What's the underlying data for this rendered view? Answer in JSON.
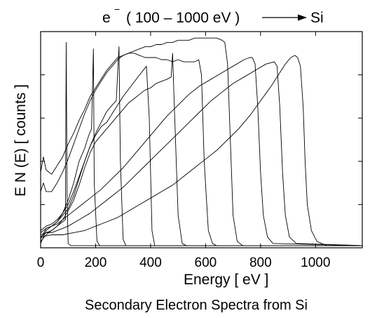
{
  "chart_data": {
    "type": "line",
    "title_prefix": "e",
    "title_superscript": "−",
    "title_main": "( 100 – 1000 eV )",
    "title_suffix": "Si",
    "xlabel": "Energy  [ eV ]",
    "ylabel": "E N (E)  [ counts ]",
    "caption": "Secondary Electron Spectra from Si",
    "xlim": [
      0,
      1170
    ],
    "x_ticks": [
      0,
      200,
      400,
      600,
      800,
      1000
    ],
    "x_tick_labels": [
      "0",
      "200",
      "400",
      "600",
      "800",
      "1000"
    ],
    "y_ticks_relative": [
      0.2,
      0.4,
      0.6,
      0.8
    ],
    "grid": false,
    "legend": "none",
    "line_color": "#000000",
    "series": [
      {
        "primary_energy_eV": 100,
        "points": [
          [
            0,
            0.05
          ],
          [
            20,
            0.07
          ],
          [
            40,
            0.08
          ],
          [
            60,
            0.1
          ],
          [
            80,
            0.12
          ],
          [
            90,
            0.13
          ],
          [
            93,
            0.95
          ],
          [
            96,
            0.25
          ],
          [
            100,
            0.02
          ],
          [
            110,
            0.01
          ],
          [
            1170,
            0.01
          ]
        ]
      },
      {
        "primary_energy_eV": 200,
        "points": [
          [
            0,
            0.02
          ],
          [
            20,
            0.08
          ],
          [
            40,
            0.1
          ],
          [
            60,
            0.12
          ],
          [
            80,
            0.16
          ],
          [
            100,
            0.22
          ],
          [
            120,
            0.3
          ],
          [
            140,
            0.4
          ],
          [
            160,
            0.46
          ],
          [
            175,
            0.52
          ],
          [
            185,
            0.55
          ],
          [
            192,
            0.92
          ],
          [
            195,
            0.3
          ],
          [
            205,
            0.03
          ],
          [
            215,
            0.01
          ],
          [
            1170,
            0.01
          ]
        ]
      },
      {
        "primary_energy_eV": 300,
        "points": [
          [
            0,
            0.08
          ],
          [
            20,
            0.1
          ],
          [
            40,
            0.11
          ],
          [
            60,
            0.13
          ],
          [
            80,
            0.16
          ],
          [
            100,
            0.2
          ],
          [
            120,
            0.26
          ],
          [
            140,
            0.33
          ],
          [
            160,
            0.4
          ],
          [
            180,
            0.47
          ],
          [
            200,
            0.53
          ],
          [
            220,
            0.58
          ],
          [
            240,
            0.63
          ],
          [
            260,
            0.66
          ],
          [
            275,
            0.68
          ],
          [
            285,
            0.93
          ],
          [
            290,
            0.4
          ],
          [
            300,
            0.04
          ],
          [
            310,
            0.01
          ],
          [
            1170,
            0.01
          ]
        ]
      },
      {
        "primary_energy_eV": 400,
        "points": [
          [
            0,
            0.04
          ],
          [
            20,
            0.09
          ],
          [
            40,
            0.1
          ],
          [
            60,
            0.12
          ],
          [
            80,
            0.15
          ],
          [
            100,
            0.18
          ],
          [
            120,
            0.24
          ],
          [
            140,
            0.32
          ],
          [
            160,
            0.4
          ],
          [
            180,
            0.47
          ],
          [
            200,
            0.52
          ],
          [
            220,
            0.56
          ],
          [
            240,
            0.58
          ],
          [
            260,
            0.62
          ],
          [
            280,
            0.66
          ],
          [
            300,
            0.7
          ],
          [
            330,
            0.75
          ],
          [
            360,
            0.8
          ],
          [
            385,
            0.84
          ],
          [
            395,
            0.6
          ],
          [
            405,
            0.08
          ],
          [
            415,
            0.01
          ],
          [
            1170,
            0.01
          ]
        ]
      },
      {
        "primary_energy_eV": 500,
        "points": [
          [
            0,
            0.03
          ],
          [
            20,
            0.06
          ],
          [
            40,
            0.08
          ],
          [
            60,
            0.1
          ],
          [
            80,
            0.13
          ],
          [
            100,
            0.17
          ],
          [
            120,
            0.22
          ],
          [
            140,
            0.29
          ],
          [
            160,
            0.37
          ],
          [
            180,
            0.44
          ],
          [
            200,
            0.49
          ],
          [
            220,
            0.52
          ],
          [
            240,
            0.55
          ],
          [
            260,
            0.58
          ],
          [
            280,
            0.61
          ],
          [
            300,
            0.64
          ],
          [
            320,
            0.67
          ],
          [
            340,
            0.69
          ],
          [
            360,
            0.71
          ],
          [
            380,
            0.73
          ],
          [
            400,
            0.74
          ],
          [
            420,
            0.76
          ],
          [
            440,
            0.77
          ],
          [
            460,
            0.78
          ],
          [
            475,
            0.79
          ],
          [
            480,
            0.9
          ],
          [
            485,
            0.7
          ],
          [
            500,
            0.15
          ],
          [
            515,
            0.02
          ],
          [
            530,
            0.01
          ],
          [
            1170,
            0.01
          ]
        ]
      },
      {
        "primary_energy_eV": 600,
        "points": [
          [
            0,
            0.35
          ],
          [
            10,
            0.42
          ],
          [
            20,
            0.36
          ],
          [
            40,
            0.34
          ],
          [
            60,
            0.38
          ],
          [
            80,
            0.42
          ],
          [
            100,
            0.48
          ],
          [
            120,
            0.53
          ],
          [
            140,
            0.59
          ],
          [
            160,
            0.64
          ],
          [
            180,
            0.7
          ],
          [
            200,
            0.74
          ],
          [
            220,
            0.78
          ],
          [
            240,
            0.82
          ],
          [
            260,
            0.85
          ],
          [
            280,
            0.88
          ],
          [
            300,
            0.89
          ],
          [
            320,
            0.9
          ],
          [
            340,
            0.9
          ],
          [
            360,
            0.89
          ],
          [
            380,
            0.88
          ],
          [
            400,
            0.88
          ],
          [
            420,
            0.88
          ],
          [
            440,
            0.87
          ],
          [
            460,
            0.87
          ],
          [
            480,
            0.86
          ],
          [
            500,
            0.87
          ],
          [
            520,
            0.86
          ],
          [
            540,
            0.86
          ],
          [
            560,
            0.86
          ],
          [
            575,
            0.87
          ],
          [
            585,
            0.8
          ],
          [
            595,
            0.4
          ],
          [
            610,
            0.08
          ],
          [
            625,
            0.02
          ],
          [
            640,
            0.01
          ],
          [
            1170,
            0.01
          ]
        ]
      },
      {
        "primary_energy_eV": 700,
        "points": [
          [
            0,
            0.26
          ],
          [
            10,
            0.3
          ],
          [
            20,
            0.26
          ],
          [
            40,
            0.26
          ],
          [
            60,
            0.3
          ],
          [
            80,
            0.35
          ],
          [
            100,
            0.41
          ],
          [
            120,
            0.48
          ],
          [
            140,
            0.55
          ],
          [
            160,
            0.62
          ],
          [
            180,
            0.68
          ],
          [
            200,
            0.73
          ],
          [
            220,
            0.77
          ],
          [
            240,
            0.81
          ],
          [
            260,
            0.84
          ],
          [
            280,
            0.87
          ],
          [
            300,
            0.89
          ],
          [
            320,
            0.9
          ],
          [
            340,
            0.91
          ],
          [
            360,
            0.92
          ],
          [
            380,
            0.93
          ],
          [
            400,
            0.93
          ],
          [
            420,
            0.94
          ],
          [
            440,
            0.94
          ],
          [
            460,
            0.95
          ],
          [
            480,
            0.95
          ],
          [
            500,
            0.96
          ],
          [
            520,
            0.96
          ],
          [
            540,
            0.96
          ],
          [
            560,
            0.97
          ],
          [
            580,
            0.97
          ],
          [
            600,
            0.97
          ],
          [
            620,
            0.97
          ],
          [
            640,
            0.97
          ],
          [
            660,
            0.96
          ],
          [
            670,
            0.95
          ],
          [
            680,
            0.85
          ],
          [
            690,
            0.5
          ],
          [
            700,
            0.15
          ],
          [
            715,
            0.03
          ],
          [
            735,
            0.01
          ],
          [
            1170,
            0.01
          ]
        ]
      },
      {
        "primary_energy_eV": 800,
        "points": [
          [
            0,
            0.07
          ],
          [
            20,
            0.09
          ],
          [
            40,
            0.1
          ],
          [
            60,
            0.11
          ],
          [
            80,
            0.13
          ],
          [
            100,
            0.15
          ],
          [
            140,
            0.19
          ],
          [
            180,
            0.23
          ],
          [
            220,
            0.27
          ],
          [
            260,
            0.32
          ],
          [
            300,
            0.37
          ],
          [
            340,
            0.43
          ],
          [
            380,
            0.49
          ],
          [
            420,
            0.55
          ],
          [
            460,
            0.61
          ],
          [
            500,
            0.66
          ],
          [
            540,
            0.71
          ],
          [
            580,
            0.75
          ],
          [
            620,
            0.78
          ],
          [
            660,
            0.81
          ],
          [
            700,
            0.84
          ],
          [
            740,
            0.87
          ],
          [
            760,
            0.88
          ],
          [
            770,
            0.88
          ],
          [
            780,
            0.85
          ],
          [
            790,
            0.65
          ],
          [
            800,
            0.35
          ],
          [
            810,
            0.15
          ],
          [
            825,
            0.05
          ],
          [
            845,
            0.02
          ],
          [
            1170,
            0.01
          ]
        ]
      },
      {
        "primary_energy_eV": 900,
        "points": [
          [
            0,
            0.06
          ],
          [
            20,
            0.07
          ],
          [
            40,
            0.07
          ],
          [
            60,
            0.08
          ],
          [
            100,
            0.1
          ],
          [
            140,
            0.13
          ],
          [
            180,
            0.16
          ],
          [
            220,
            0.2
          ],
          [
            260,
            0.24
          ],
          [
            300,
            0.28
          ],
          [
            340,
            0.33
          ],
          [
            380,
            0.38
          ],
          [
            420,
            0.43
          ],
          [
            460,
            0.48
          ],
          [
            500,
            0.53
          ],
          [
            540,
            0.58
          ],
          [
            580,
            0.63
          ],
          [
            620,
            0.68
          ],
          [
            660,
            0.72
          ],
          [
            700,
            0.76
          ],
          [
            740,
            0.79
          ],
          [
            780,
            0.82
          ],
          [
            820,
            0.85
          ],
          [
            850,
            0.86
          ],
          [
            860,
            0.84
          ],
          [
            870,
            0.65
          ],
          [
            880,
            0.35
          ],
          [
            890,
            0.15
          ],
          [
            905,
            0.05
          ],
          [
            930,
            0.02
          ],
          [
            1170,
            0.01
          ]
        ]
      },
      {
        "primary_energy_eV": 1000,
        "points": [
          [
            0,
            0.05
          ],
          [
            40,
            0.06
          ],
          [
            80,
            0.06
          ],
          [
            120,
            0.07
          ],
          [
            160,
            0.08
          ],
          [
            200,
            0.1
          ],
          [
            240,
            0.12
          ],
          [
            280,
            0.14
          ],
          [
            320,
            0.17
          ],
          [
            360,
            0.2
          ],
          [
            400,
            0.23
          ],
          [
            440,
            0.26
          ],
          [
            480,
            0.29
          ],
          [
            520,
            0.33
          ],
          [
            560,
            0.37
          ],
          [
            600,
            0.41
          ],
          [
            640,
            0.45
          ],
          [
            680,
            0.5
          ],
          [
            720,
            0.55
          ],
          [
            760,
            0.61
          ],
          [
            800,
            0.68
          ],
          [
            840,
            0.75
          ],
          [
            870,
            0.81
          ],
          [
            890,
            0.85
          ],
          [
            910,
            0.88
          ],
          [
            925,
            0.89
          ],
          [
            935,
            0.88
          ],
          [
            945,
            0.84
          ],
          [
            955,
            0.65
          ],
          [
            962,
            0.4
          ],
          [
            970,
            0.2
          ],
          [
            985,
            0.08
          ],
          [
            1005,
            0.03
          ],
          [
            1040,
            0.01
          ],
          [
            1170,
            0.01
          ]
        ]
      }
    ]
  }
}
